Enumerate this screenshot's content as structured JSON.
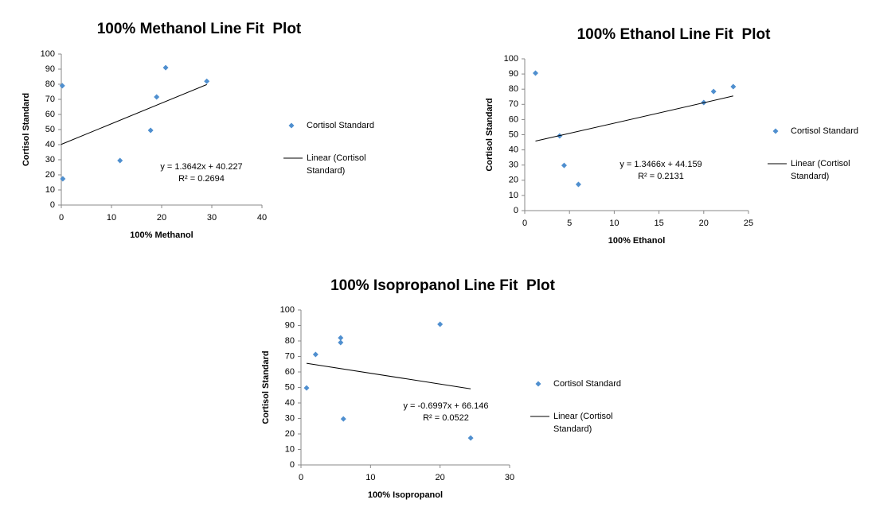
{
  "chart_data": [
    {
      "type": "scatter",
      "title": "100% Methanol Line Fit  Plot",
      "x_label": "100% Methanol",
      "y_label": "Cortisol Standard",
      "xlim": [
        0,
        40
      ],
      "xticks": [
        0,
        10,
        20,
        30,
        40
      ],
      "ylim": [
        0,
        100
      ],
      "yticks": [
        0,
        10,
        20,
        30,
        40,
        50,
        60,
        70,
        80,
        90,
        100
      ],
      "series": [
        {
          "name": "Cortisol Standard",
          "mode": "markers",
          "color": "#4f8fcf",
          "x": [
            0.2,
            0.3,
            11.7,
            17.8,
            19,
            20.8,
            29
          ],
          "values": [
            79,
            17.4,
            29.5,
            49.5,
            71.6,
            91,
            82
          ]
        },
        {
          "name": "Linear (Cortisol Standard)",
          "mode": "line",
          "color": "#000000",
          "x": [
            0,
            29
          ],
          "values": [
            40.2,
            79.8
          ]
        }
      ],
      "annotations": [
        "y = 1.3642x + 40.227",
        "R² = 0.2694"
      ]
    },
    {
      "type": "scatter",
      "title": "100% Ethanol Line Fit  Plot",
      "x_label": "100% Ethanol",
      "y_label": "Cortisol Standard",
      "xlim": [
        0,
        25
      ],
      "xticks": [
        0,
        5,
        10,
        15,
        20,
        25
      ],
      "ylim": [
        0,
        100
      ],
      "yticks": [
        0,
        10,
        20,
        30,
        40,
        50,
        60,
        70,
        80,
        90,
        100
      ],
      "series": [
        {
          "name": "Cortisol Standard",
          "mode": "markers",
          "color": "#4f8fcf",
          "x": [
            1.2,
            3.9,
            4.4,
            6.0,
            20,
            21.1,
            23.3
          ],
          "values": [
            90.6,
            49.2,
            29.8,
            17.3,
            71.2,
            78.5,
            81.7
          ]
        },
        {
          "name": "Linear (Cortisol Standard)",
          "mode": "line",
          "color": "#000000",
          "x": [
            1.2,
            23.3
          ],
          "values": [
            45.8,
            75.5
          ]
        }
      ],
      "annotations": [
        "y = 1.3466x + 44.159",
        "R² = 0.2131"
      ]
    },
    {
      "type": "scatter",
      "title": "100% Isopropanol Line Fit  Plot",
      "x_label": "100% Isopropanol",
      "y_label": "Cortisol Standard",
      "xlim": [
        0,
        30
      ],
      "xticks": [
        0,
        10,
        20,
        30
      ],
      "ylim": [
        0,
        100
      ],
      "yticks": [
        0,
        10,
        20,
        30,
        40,
        50,
        60,
        70,
        80,
        90,
        100
      ],
      "series": [
        {
          "name": "Cortisol Standard",
          "mode": "markers",
          "color": "#4f8fcf",
          "x": [
            0.8,
            2.1,
            5.7,
            5.7,
            6.1,
            20,
            24.4
          ],
          "values": [
            49.7,
            71.3,
            82,
            79,
            29.7,
            90.8,
            17.4
          ]
        },
        {
          "name": "Linear (Cortisol Standard)",
          "mode": "line",
          "color": "#000000",
          "x": [
            0.8,
            24.4
          ],
          "values": [
            65.6,
            49.1
          ]
        }
      ],
      "annotations": [
        "y = -0.6997x + 66.146",
        "R² = 0.0522"
      ]
    }
  ]
}
